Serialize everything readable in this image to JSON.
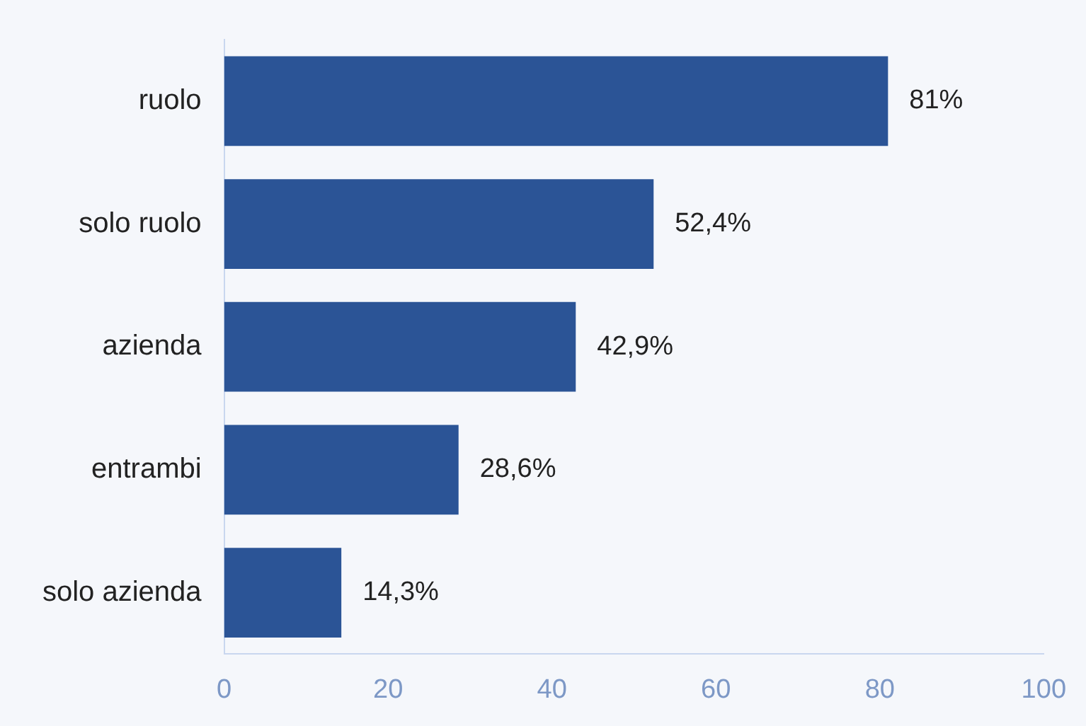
{
  "chart_data": {
    "type": "bar",
    "orientation": "horizontal",
    "categories": [
      "ruolo",
      "solo ruolo",
      "azienda",
      "entrambi",
      "solo azienda"
    ],
    "values": [
      81,
      52.4,
      42.9,
      28.6,
      14.3
    ],
    "value_labels": [
      "81%",
      "52,4%",
      "42,9%",
      "28,6%",
      "14,3%"
    ],
    "color": "#2b5496",
    "xlim": [
      0,
      100
    ],
    "xticks": [
      0,
      20,
      40,
      60,
      80,
      100
    ],
    "grid": false,
    "legend": false
  }
}
